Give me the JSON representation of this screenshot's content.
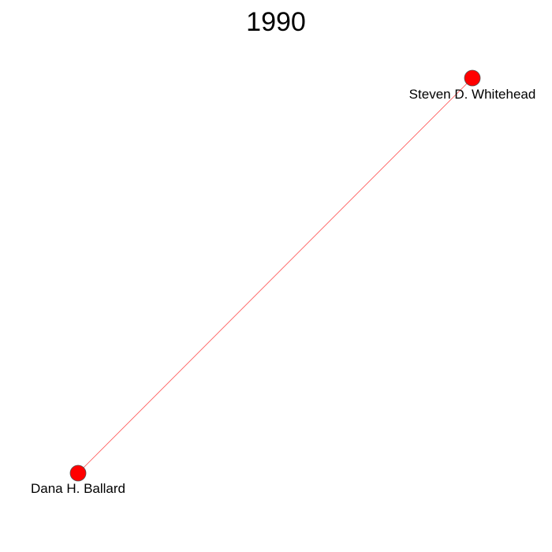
{
  "title": "1990",
  "colors": {
    "node_fill": "#ff0000",
    "node_stroke": "#555555",
    "edge": "#ff4d4d",
    "background": "#ffffff"
  },
  "nodes": [
    {
      "id": "steven",
      "label": "Steven D. Whitehead"
    },
    {
      "id": "dana",
      "label": "Dana H. Ballard"
    }
  ],
  "edges": [
    {
      "source": "dana",
      "target": "steven"
    }
  ]
}
